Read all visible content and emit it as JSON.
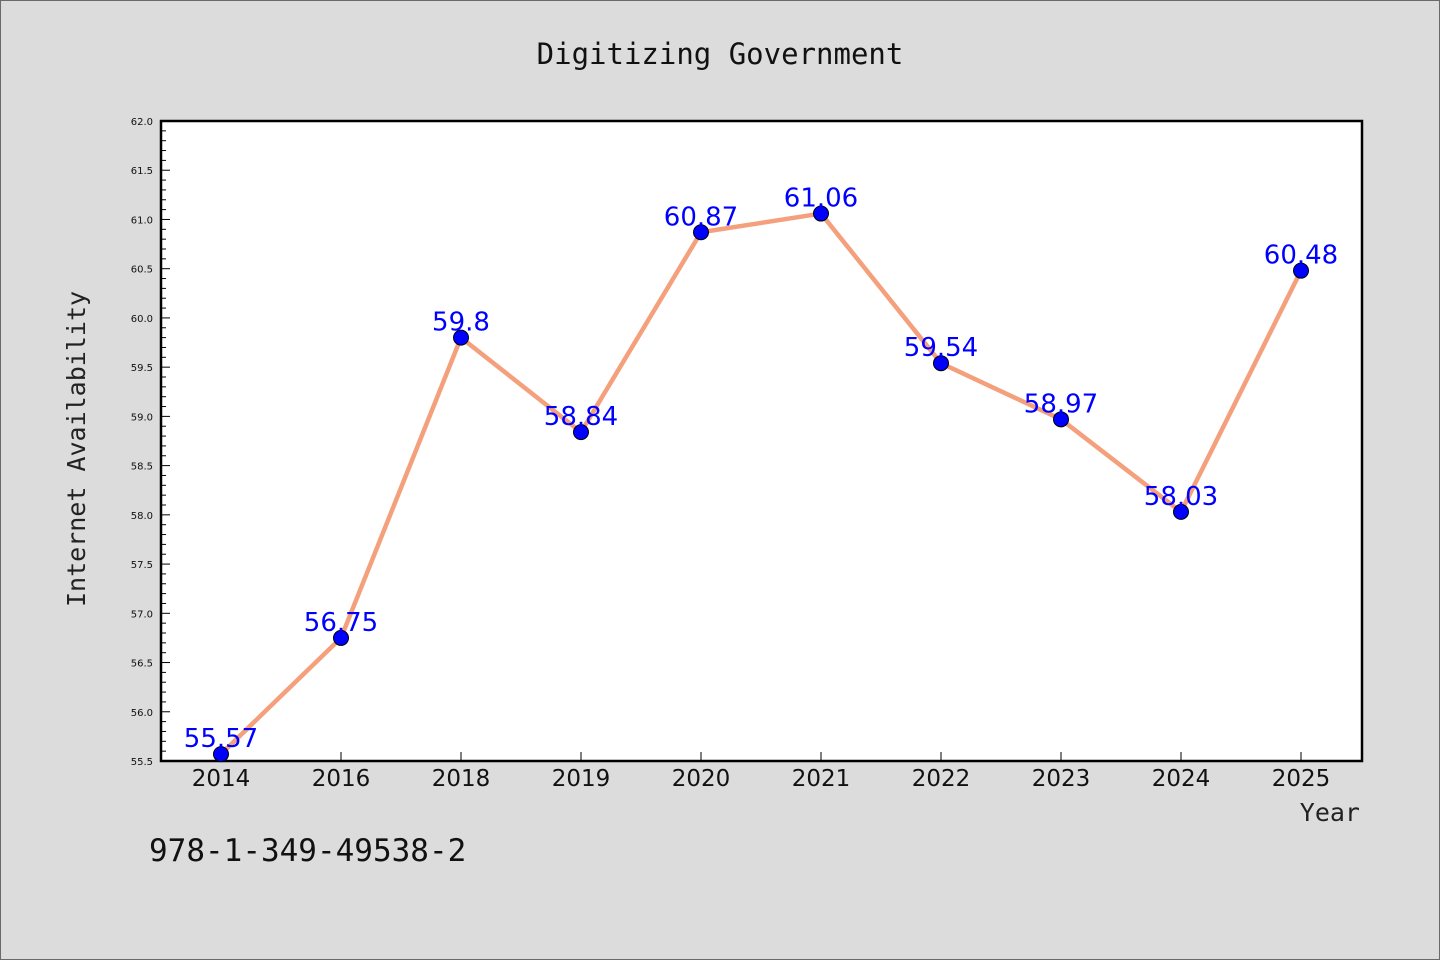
{
  "chart_data": {
    "type": "line",
    "title": "Digitizing Government",
    "xlabel": "Year",
    "ylabel": "Internet Availability",
    "categories": [
      "2014",
      "2016",
      "2018",
      "2019",
      "2020",
      "2021",
      "2022",
      "2023",
      "2024",
      "2025"
    ],
    "series": [
      {
        "values": [
          55.57,
          56.75,
          59.8,
          58.84,
          60.87,
          61.06,
          59.54,
          58.97,
          58.03,
          60.48
        ],
        "data_labels": [
          "55.57",
          "56.75",
          "59.8",
          "58.84",
          "60.87",
          "61.06",
          "59.54",
          "58.97",
          "58.03",
          "60.48"
        ]
      }
    ],
    "ylim": [
      55.5,
      62.0
    ],
    "yticks": [
      "55.5",
      "56.0",
      "56.5",
      "57.0",
      "57.5",
      "58.0",
      "58.5",
      "59.0",
      "59.5",
      "60.0",
      "60.5",
      "61.0",
      "61.5",
      "62.0"
    ],
    "grid": false,
    "legend": "none",
    "colors": {
      "line": "#f4a07c",
      "marker": "#0000ff",
      "data_label": "#0000ff",
      "background": "#dcdcdc",
      "plot_background": "#ffffff"
    }
  },
  "footer": {
    "isbn": "978-1-349-49538-2"
  }
}
